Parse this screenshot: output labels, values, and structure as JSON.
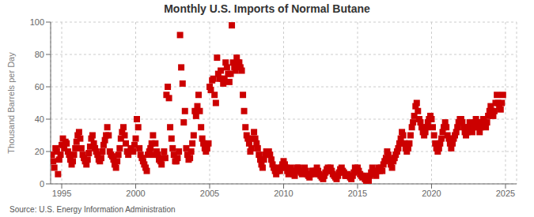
{
  "chart_data": {
    "type": "scatter",
    "title": "Monthly U.S. Imports of Normal Butane",
    "ylabel": "Thousand Barrels per Day",
    "annotations": [
      "Source: U.S. Energy Information Administration"
    ],
    "color": "#cc0000",
    "marker": "square",
    "grid": true,
    "xlim": [
      1994.25,
      2025.75
    ],
    "xticks": [
      1995,
      2000,
      2005,
      2010,
      2015,
      2020,
      2025
    ],
    "ylim": [
      0,
      100
    ],
    "yticks": [
      0,
      20,
      40,
      60,
      80,
      100
    ],
    "x": [
      1994.33,
      1994.42,
      1994.5,
      1994.58,
      1994.67,
      1994.75,
      1994.83,
      1994.92,
      1995.0,
      1995.08,
      1995.17,
      1995.25,
      1995.33,
      1995.42,
      1995.5,
      1995.58,
      1995.67,
      1995.75,
      1995.83,
      1995.92,
      1996.0,
      1996.08,
      1996.17,
      1996.25,
      1996.33,
      1996.42,
      1996.5,
      1996.58,
      1996.67,
      1996.75,
      1996.83,
      1996.92,
      1997.0,
      1997.08,
      1997.17,
      1997.25,
      1997.33,
      1997.42,
      1997.5,
      1997.58,
      1997.67,
      1997.75,
      1997.83,
      1997.92,
      1998.0,
      1998.08,
      1998.17,
      1998.25,
      1998.33,
      1998.42,
      1998.5,
      1998.58,
      1998.67,
      1998.75,
      1998.83,
      1998.92,
      1999.0,
      1999.08,
      1999.17,
      1999.25,
      1999.33,
      1999.42,
      1999.5,
      1999.58,
      1999.67,
      1999.75,
      1999.83,
      1999.92,
      2000.0,
      2000.08,
      2000.17,
      2000.25,
      2000.33,
      2000.42,
      2000.5,
      2000.58,
      2000.67,
      2000.75,
      2000.83,
      2000.92,
      2001.0,
      2001.08,
      2001.17,
      2001.25,
      2001.33,
      2001.42,
      2001.5,
      2001.58,
      2001.67,
      2001.75,
      2001.83,
      2001.92,
      2002.0,
      2002.08,
      2002.17,
      2002.25,
      2002.33,
      2002.42,
      2002.5,
      2002.58,
      2002.67,
      2002.75,
      2002.83,
      2002.92,
      2003.0,
      2003.08,
      2003.17,
      2003.25,
      2003.33,
      2003.42,
      2003.5,
      2003.58,
      2003.67,
      2003.75,
      2003.83,
      2003.92,
      2004.0,
      2004.08,
      2004.17,
      2004.25,
      2004.33,
      2004.42,
      2004.5,
      2004.58,
      2004.67,
      2004.75,
      2004.83,
      2004.92,
      2005.0,
      2005.08,
      2005.17,
      2005.25,
      2005.33,
      2005.42,
      2005.5,
      2005.58,
      2005.67,
      2005.75,
      2005.83,
      2005.92,
      2006.0,
      2006.08,
      2006.17,
      2006.25,
      2006.33,
      2006.42,
      2006.5,
      2006.58,
      2006.67,
      2006.75,
      2006.83,
      2006.92,
      2007.0,
      2007.08,
      2007.17,
      2007.25,
      2007.33,
      2007.42,
      2007.5,
      2007.58,
      2007.67,
      2007.75,
      2007.83,
      2007.92,
      2008.0,
      2008.08,
      2008.17,
      2008.25,
      2008.33,
      2008.42,
      2008.5,
      2008.58,
      2008.67,
      2008.75,
      2008.83,
      2008.92,
      2009.0,
      2009.08,
      2009.17,
      2009.25,
      2009.33,
      2009.42,
      2009.5,
      2009.58,
      2009.67,
      2009.75,
      2009.83,
      2009.92,
      2010.0,
      2010.08,
      2010.17,
      2010.25,
      2010.33,
      2010.42,
      2010.5,
      2010.58,
      2010.67,
      2010.75,
      2010.83,
      2010.92,
      2011.0,
      2011.08,
      2011.17,
      2011.25,
      2011.33,
      2011.42,
      2011.5,
      2011.58,
      2011.67,
      2011.75,
      2011.83,
      2011.92,
      2012.0,
      2012.08,
      2012.17,
      2012.25,
      2012.33,
      2012.42,
      2012.5,
      2012.58,
      2012.67,
      2012.75,
      2012.83,
      2012.92,
      2013.0,
      2013.08,
      2013.17,
      2013.25,
      2013.33,
      2013.42,
      2013.5,
      2013.58,
      2013.67,
      2013.75,
      2013.83,
      2013.92,
      2014.0,
      2014.08,
      2014.17,
      2014.25,
      2014.33,
      2014.42,
      2014.5,
      2014.58,
      2014.67,
      2014.75,
      2014.83,
      2014.92,
      2015.0,
      2015.08,
      2015.17,
      2015.25,
      2015.33,
      2015.42,
      2015.5,
      2015.58,
      2015.67,
      2015.75,
      2015.83,
      2015.92,
      2016.0,
      2016.08,
      2016.17,
      2016.25,
      2016.33,
      2016.42,
      2016.5,
      2016.58,
      2016.67,
      2016.75,
      2016.83,
      2016.92,
      2017.0,
      2017.08,
      2017.17,
      2017.25,
      2017.33,
      2017.42,
      2017.5,
      2017.58,
      2017.67,
      2017.75,
      2017.83,
      2017.92,
      2018.0,
      2018.08,
      2018.17,
      2018.25,
      2018.33,
      2018.42,
      2018.5,
      2018.58,
      2018.67,
      2018.75,
      2018.83,
      2018.92,
      2019.0,
      2019.08,
      2019.17,
      2019.25,
      2019.33,
      2019.42,
      2019.5,
      2019.58,
      2019.67,
      2019.75,
      2019.83,
      2019.92,
      2020.0,
      2020.08,
      2020.17,
      2020.25,
      2020.33,
      2020.42,
      2020.5,
      2020.58,
      2020.67,
      2020.75,
      2020.83,
      2020.92,
      2021.0,
      2021.08,
      2021.17,
      2021.25,
      2021.33,
      2021.42,
      2021.5,
      2021.58,
      2021.67,
      2021.75,
      2021.83,
      2021.92,
      2022.0,
      2022.08,
      2022.17,
      2022.25,
      2022.33,
      2022.42,
      2022.5,
      2022.58,
      2022.67,
      2022.75,
      2022.83,
      2022.92,
      2023.0,
      2023.08,
      2023.17,
      2023.25,
      2023.33,
      2023.42,
      2023.5,
      2023.58,
      2023.67,
      2023.75,
      2023.83,
      2023.92,
      2024.0,
      2024.08,
      2024.17,
      2024.25,
      2024.33,
      2024.42,
      2024.5,
      2024.58,
      2024.67,
      2024.75,
      2024.83
    ],
    "values": [
      18,
      14,
      10,
      22,
      20,
      6,
      15,
      18,
      24,
      28,
      22,
      26,
      25,
      20,
      18,
      15,
      12,
      14,
      18,
      22,
      26,
      30,
      32,
      28,
      22,
      18,
      16,
      14,
      12,
      15,
      19,
      23,
      28,
      30,
      25,
      22,
      20,
      18,
      15,
      14,
      16,
      20,
      24,
      27,
      30,
      35,
      30,
      20,
      18,
      17,
      15,
      12,
      10,
      14,
      18,
      22,
      28,
      32,
      35,
      30,
      25,
      20,
      18,
      20,
      22,
      20,
      20,
      24,
      28,
      40,
      35,
      22,
      18,
      16,
      14,
      12,
      10,
      8,
      18,
      20,
      22,
      25,
      30,
      18,
      25,
      20,
      18,
      15,
      14,
      12,
      16,
      20,
      16,
      55,
      60,
      53,
      35,
      28,
      22,
      18,
      14,
      14,
      16,
      20,
      92,
      72,
      62,
      38,
      45,
      22,
      18,
      15,
      16,
      20,
      25,
      30,
      45,
      42,
      48,
      55,
      45,
      35,
      28,
      25,
      22,
      20,
      22,
      25,
      60,
      58,
      64,
      65,
      55,
      50,
      78,
      68,
      65,
      70,
      65,
      62,
      65,
      75,
      72,
      68,
      63,
      68,
      98,
      75,
      72,
      70,
      78,
      75,
      75,
      72,
      70,
      55,
      45,
      35,
      30,
      28,
      25,
      20,
      22,
      28,
      32,
      28,
      25,
      22,
      18,
      15,
      12,
      10,
      15,
      18,
      20,
      18,
      20,
      18,
      15,
      12,
      10,
      8,
      6,
      8,
      10,
      8,
      10,
      12,
      14,
      12,
      10,
      8,
      6,
      8,
      10,
      8,
      6,
      5,
      8,
      10,
      10,
      8,
      7,
      6,
      8,
      10,
      8,
      6,
      5,
      4,
      6,
      8,
      8,
      6,
      8,
      10,
      8,
      6,
      5,
      4,
      3,
      5,
      7,
      9,
      10,
      8,
      10,
      8,
      6,
      5,
      4,
      3,
      5,
      7,
      9,
      10,
      8,
      7,
      5,
      5,
      6,
      5,
      4,
      3,
      5,
      7,
      10,
      8,
      10,
      8,
      6,
      5,
      4,
      5,
      3,
      2,
      4,
      2,
      5,
      7,
      10,
      8,
      6,
      5,
      8,
      10,
      8,
      10,
      8,
      12,
      14,
      16,
      20,
      18,
      15,
      12,
      10,
      14,
      16,
      18,
      20,
      22,
      25,
      28,
      32,
      30,
      25,
      22,
      20,
      22,
      25,
      30,
      35,
      38,
      42,
      48,
      50,
      45,
      40,
      38,
      35,
      32,
      30,
      32,
      35,
      38,
      40,
      42,
      40,
      35,
      30,
      25,
      22,
      20,
      22,
      25,
      28,
      32,
      35,
      38,
      35,
      30,
      28,
      25,
      22,
      25,
      28,
      30,
      32,
      35,
      38,
      40,
      40,
      38,
      35,
      32,
      30,
      32,
      35,
      38,
      35,
      32,
      35,
      38,
      40,
      38,
      35,
      32,
      35,
      38,
      40,
      38,
      35,
      38,
      42,
      45,
      48,
      45,
      42,
      45,
      50,
      55,
      50,
      48,
      46,
      50,
      55
    ]
  }
}
